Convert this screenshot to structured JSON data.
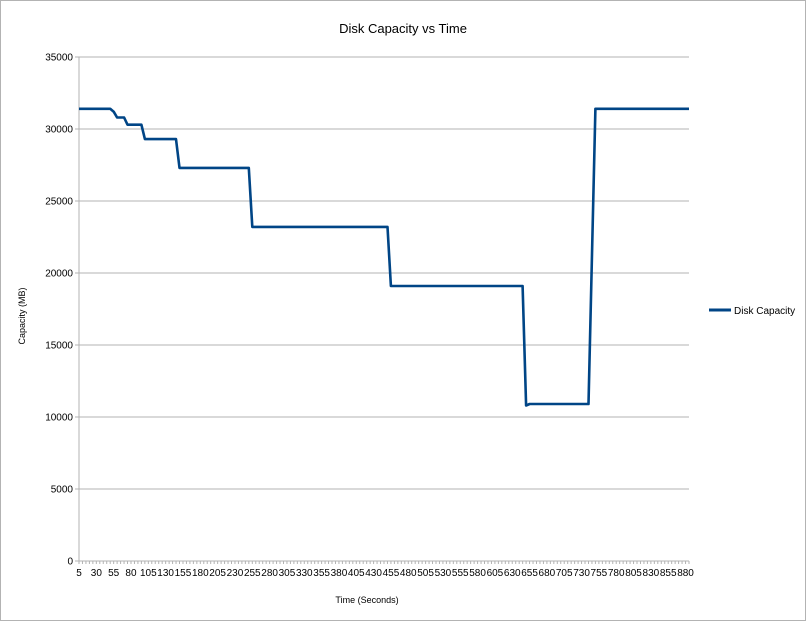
{
  "chart_data": {
    "type": "line",
    "title": "Disk Capacity vs Time",
    "xlabel": "Time (Seconds)",
    "ylabel": "Capacity (MB)",
    "ylim": [
      0,
      35000
    ],
    "yticks": [
      0,
      5000,
      10000,
      15000,
      20000,
      25000,
      30000,
      35000
    ],
    "xlim": [
      5,
      885
    ],
    "xticks": [
      5,
      30,
      55,
      80,
      105,
      130,
      155,
      180,
      205,
      230,
      255,
      280,
      305,
      330,
      355,
      380,
      405,
      430,
      455,
      480,
      505,
      530,
      555,
      580,
      605,
      630,
      655,
      680,
      705,
      730,
      755,
      780,
      805,
      830,
      855,
      880
    ],
    "grid": "horizontal",
    "legend": "right",
    "series": [
      {
        "name": "Disk Capacity",
        "color": "#004586",
        "x": [
          5,
          50,
          55,
          60,
          65,
          70,
          75,
          80,
          85,
          95,
          100,
          105,
          145,
          150,
          250,
          255,
          450,
          455,
          645,
          650,
          655,
          660,
          740,
          750
        ],
        "y": [
          31400,
          31400,
          31200,
          30800,
          30800,
          30800,
          30300,
          30300,
          30300,
          30300,
          29300,
          29300,
          29300,
          27300,
          27300,
          23200,
          23200,
          19100,
          19100,
          10800,
          10900,
          10900,
          10900,
          31400
        ]
      }
    ]
  }
}
